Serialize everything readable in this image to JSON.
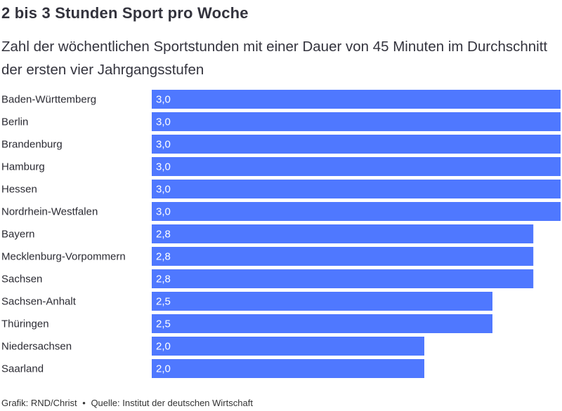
{
  "header": {
    "title": "2 bis 3 Stunden Sport pro Woche",
    "subtitle": "Zahl der wöchentlichen Sportstunden mit einer Dauer von 45 Minuten im Durchschnitt der ersten vier Jahrgangsstufen"
  },
  "footer": {
    "credit": "Grafik: RND/Christ",
    "separator": "•",
    "source": "Quelle: Institut der deutschen Wirtschaft"
  },
  "colors": {
    "bar": "#4f78ff",
    "bar_label": "#ffffff",
    "category_label": "#2b2b33"
  },
  "chart_data": {
    "type": "bar",
    "orientation": "horizontal",
    "categories": [
      "Baden-Württemberg",
      "Berlin",
      "Brandenburg",
      "Hamburg",
      "Hessen",
      "Nordrhein-Westfalen",
      "Bayern",
      "Mecklenburg-Vorpommern",
      "Sachsen",
      "Sachsen-Anhalt",
      "Thüringen",
      "Niedersachsen",
      "Saarland"
    ],
    "values": [
      3.0,
      3.0,
      3.0,
      3.0,
      3.0,
      3.0,
      2.8,
      2.8,
      2.8,
      2.5,
      2.5,
      2.0,
      2.0
    ],
    "value_labels": [
      "3,0",
      "3,0",
      "3,0",
      "3,0",
      "3,0",
      "3,0",
      "2,8",
      "2,8",
      "2,8",
      "2,5",
      "2,5",
      "2,0",
      "2,0"
    ],
    "title": "2 bis 3 Stunden Sport pro Woche",
    "xlim": [
      0,
      3.0
    ],
    "grid": false,
    "legend": "none"
  }
}
